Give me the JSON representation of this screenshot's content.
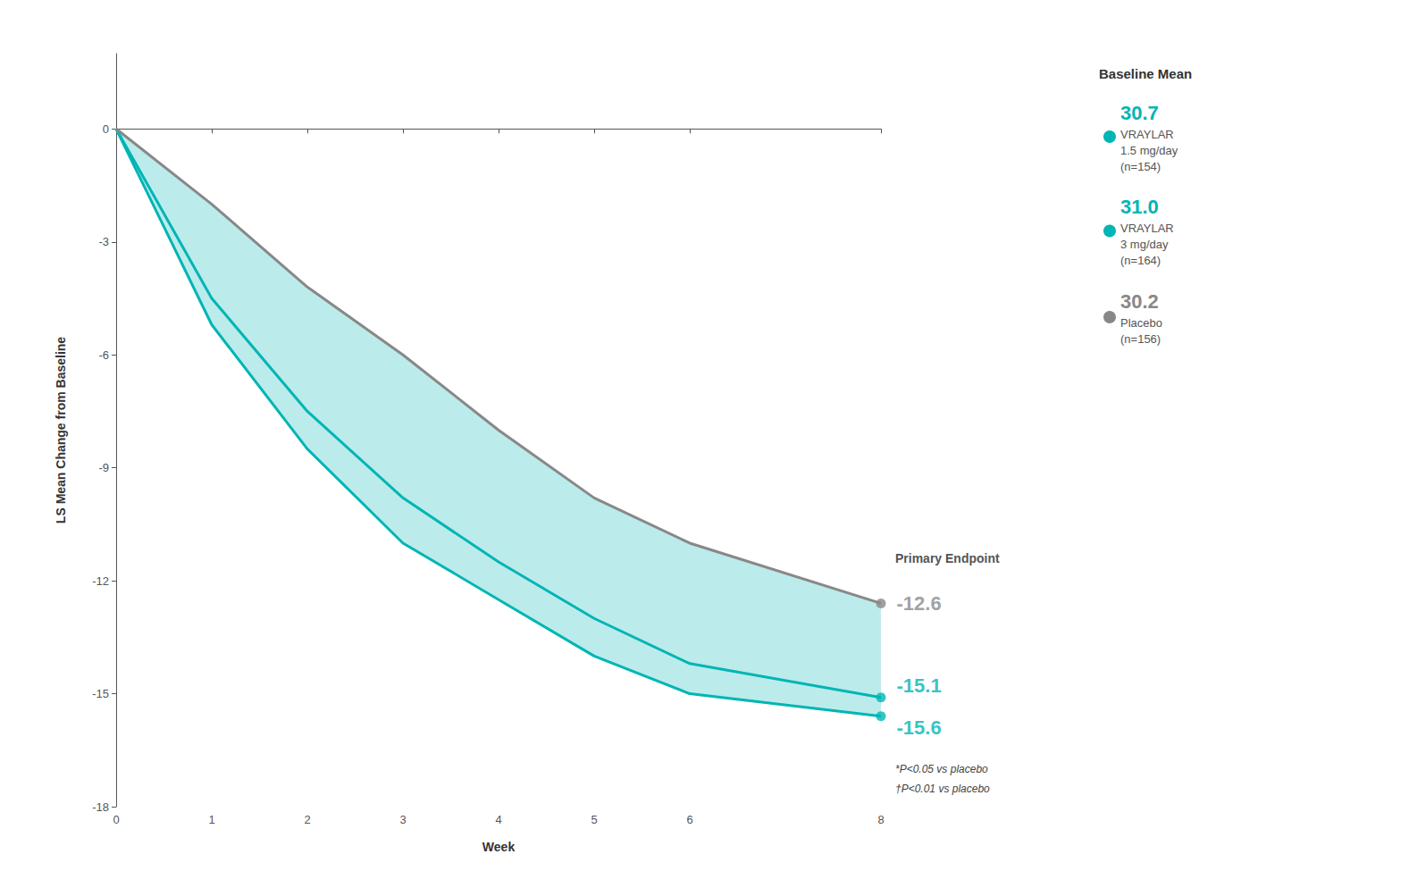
{
  "chart_data": {
    "type": "line",
    "x": [
      0,
      1,
      2,
      3,
      4,
      5,
      6,
      8
    ],
    "series": [
      {
        "name": "VRAYLAR\n1.5 mg/day\n(n=154)",
        "color": "#00B5B5",
        "values": [
          0,
          -4.5,
          -7.5,
          -9.8,
          -11.5,
          -13.0,
          -14.2,
          -15.1
        ],
        "endpoint": -15.1,
        "baseline_mean": 30.7
      },
      {
        "name": "VRAYLAR\n3 mg/day\n(n=164)",
        "color": "#00B5B5",
        "values": [
          0,
          -5.2,
          -8.5,
          -11.0,
          -12.5,
          -14.0,
          -15.0,
          -15.6
        ],
        "endpoint": -15.6,
        "baseline_mean": {
          "value": 31.0,
          "label": "31.0"
        }
      },
      {
        "name": "Placebo\n(n=156)",
        "color": "#888888",
        "values": [
          0,
          -2.0,
          -4.2,
          -6.0,
          -8.0,
          -9.8,
          -11.0,
          -12.6
        ],
        "endpoint": -12.6,
        "baseline_mean": 30.2
      }
    ],
    "xlabel": "Week",
    "ylabel": "LS Mean Change from Baseline",
    "xlim": [
      0,
      8
    ],
    "ylim": [
      -18,
      2
    ],
    "xticks": [
      0,
      1,
      2,
      3,
      4,
      5,
      6,
      8
    ],
    "yticks": [
      0,
      -3,
      -6,
      -9,
      -12,
      -15,
      -18
    ],
    "grid": false,
    "legend": "right",
    "legend_title": "Baseline Mean",
    "annotations": [
      "Primary Endpoint"
    ],
    "footnotes": [
      "*P<0.05 vs placebo",
      "†P<0.01 vs placebo"
    ],
    "fill_between": {
      "series": [
        1,
        2
      ],
      "color": "#B0E8E8"
    }
  }
}
